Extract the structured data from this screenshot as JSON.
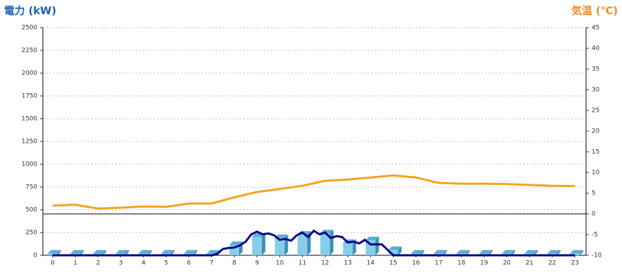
{
  "chart_data": {
    "type": "combo",
    "y_label": "電力 (kW)",
    "y2_label": "気温 (℃)",
    "y_label_color": "#1a5fb4",
    "y2_label_color": "#f08a24",
    "xlim": [
      -0.43,
      23.49
    ],
    "xticks": [
      0,
      1,
      2,
      3,
      4,
      5,
      6,
      7,
      8,
      9,
      10,
      11,
      12,
      13,
      14,
      15,
      16,
      17,
      18,
      19,
      20,
      21,
      22,
      23
    ],
    "ylim": [
      0,
      2500
    ],
    "yticks": [
      0,
      250,
      500,
      750,
      1000,
      1250,
      1500,
      1750,
      2000,
      2250,
      2500
    ],
    "y2lim": [
      -10,
      45
    ],
    "y2ticks": [
      -10,
      -5,
      0,
      5,
      10,
      15,
      20,
      25,
      30,
      35,
      40,
      45
    ],
    "grid": true,
    "series": [
      {
        "type": "bar",
        "color": "#86cdea",
        "x": [
          0,
          1,
          2,
          3,
          4,
          5,
          6,
          7,
          8,
          9,
          10,
          11,
          12,
          13,
          14,
          15,
          16,
          17,
          18,
          19,
          20,
          21,
          22,
          23
        ],
        "values": [
          20,
          20,
          20,
          20,
          20,
          20,
          20,
          20,
          114,
          205,
          190,
          227,
          242,
          136,
          167,
          60,
          20,
          20,
          20,
          20,
          20,
          20,
          20,
          20
        ]
      },
      {
        "type": "line",
        "color": "#00008b",
        "x": [
          0,
          7,
          7.25,
          7.5,
          7.75,
          8,
          8.25,
          8.5,
          8.75,
          9,
          9.25,
          9.5,
          9.75,
          10,
          10.25,
          10.5,
          10.75,
          11,
          11.25,
          11.5,
          11.75,
          12,
          12.25,
          12.5,
          12.75,
          13,
          13.25,
          13.5,
          13.75,
          14,
          14.25,
          14.5,
          14.75,
          15,
          23
        ],
        "values": [
          0,
          0,
          15,
          70,
          80,
          85,
          110,
          150,
          230,
          260,
          230,
          240,
          220,
          170,
          180,
          160,
          220,
          250,
          200,
          270,
          230,
          250,
          190,
          210,
          200,
          140,
          150,
          130,
          170,
          120,
          120,
          120,
          60,
          0,
          0
        ]
      },
      {
        "type": "line",
        "axis": "y2",
        "color": "#f5a21c",
        "x": [
          0,
          1,
          2,
          3,
          4,
          5,
          6,
          7,
          8,
          9,
          10,
          11,
          12,
          13,
          14,
          15,
          16,
          17,
          18,
          19,
          20,
          21,
          22,
          23
        ],
        "values": [
          2,
          2.2,
          1.3,
          1.5,
          1.8,
          1.7,
          2.5,
          2.5,
          4,
          5.3,
          6,
          6.8,
          8,
          8.3,
          8.8,
          9.3,
          8.8,
          7.5,
          7.3,
          7.3,
          7.2,
          7,
          6.8,
          6.7
        ]
      }
    ]
  }
}
